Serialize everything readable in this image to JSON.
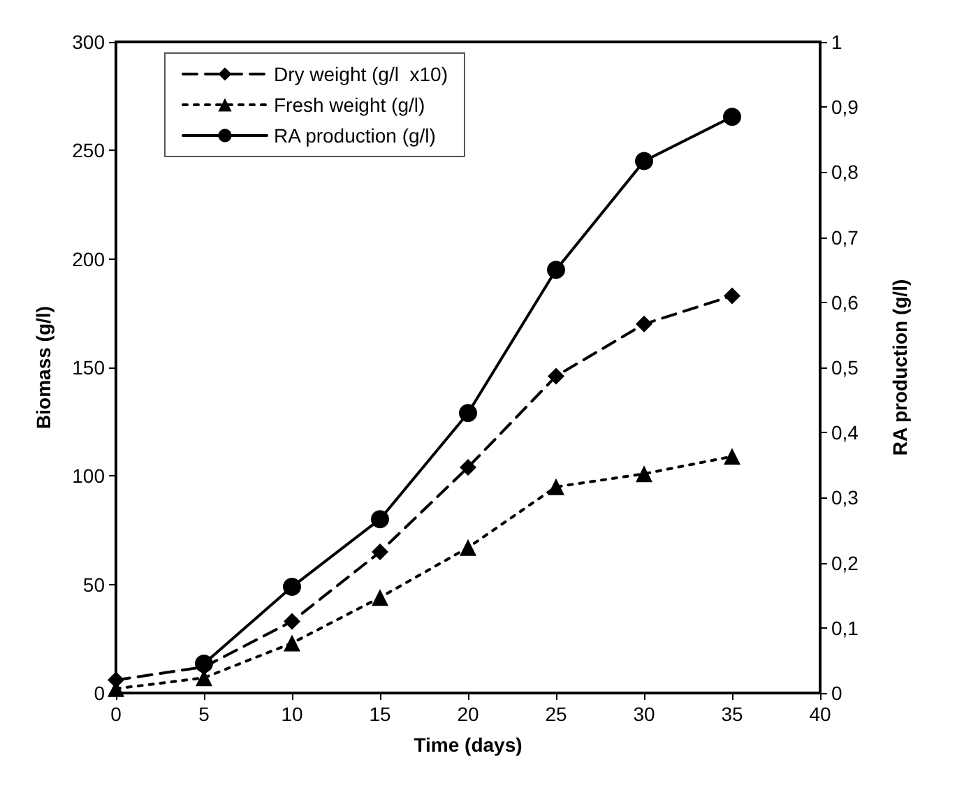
{
  "chart_data": {
    "type": "line",
    "xlabel": "Time (days)",
    "ylabel": "Biomass (g/l)",
    "y2label": "RA production (g/l)",
    "x": [
      0,
      5,
      10,
      15,
      20,
      25,
      30,
      35
    ],
    "series": [
      {
        "name": "Dry weight (g/l  x10)",
        "color": "#000000",
        "values": [
          6,
          12,
          33,
          65,
          104,
          146,
          170,
          183
        ],
        "marker": "diamond",
        "line_style": "dashed"
      },
      {
        "name": "Fresh weight (g/l)",
        "color": "#000000",
        "values": [
          2,
          7,
          23,
          44,
          67,
          95,
          101,
          109
        ],
        "marker": "triangle",
        "line_style": "dotted"
      },
      {
        "name": "RA production (g/l)",
        "color": "#000000",
        "values": [
          null,
          0.045,
          0.163,
          0.267,
          0.43,
          0.65,
          0.817,
          0.885
        ],
        "marker": "circle",
        "line_style": "solid",
        "axis": "y2"
      }
    ],
    "xlim": [
      0,
      40
    ],
    "xticks": [
      0,
      5,
      10,
      15,
      20,
      25,
      30,
      35,
      40
    ],
    "ylim": [
      0,
      300
    ],
    "yticks": [
      0,
      50,
      100,
      150,
      200,
      250,
      300
    ],
    "y2lim": [
      0,
      1
    ],
    "y2ticks": [
      0,
      {
        "value": 0.1,
        "label": "0,1"
      },
      {
        "value": 0.2,
        "label": "0,2"
      },
      {
        "value": 0.3,
        "label": "0,3"
      },
      {
        "value": 0.4,
        "label": "0,4"
      },
      {
        "value": 0.5,
        "label": "0,5"
      },
      {
        "value": 0.6,
        "label": "0,6"
      },
      {
        "value": 0.7,
        "label": "0,7"
      },
      {
        "value": 0.8,
        "label": "0,8"
      },
      {
        "value": 0.9,
        "label": "0,9"
      },
      1
    ],
    "grid": false,
    "legend": "top left"
  }
}
